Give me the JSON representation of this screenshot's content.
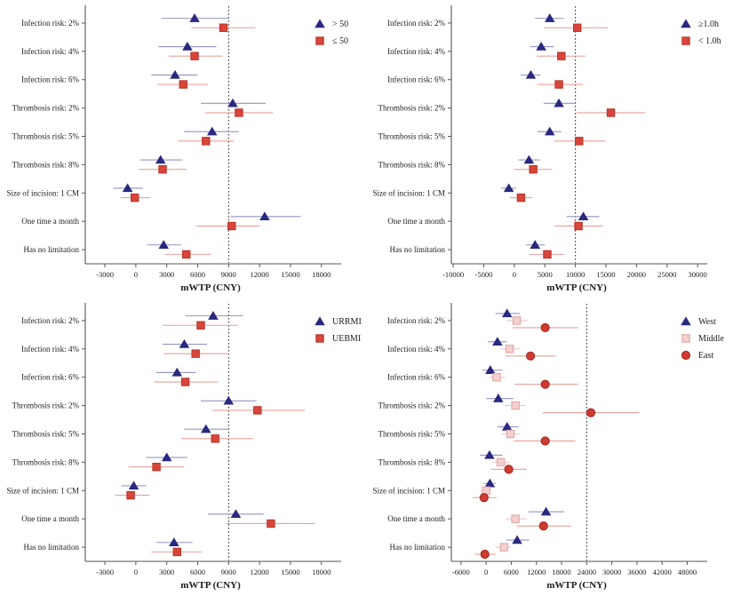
{
  "figure": {
    "xlabel": "mWTP (CNY)",
    "categories": [
      "Infection risk: 2%",
      "Infection risk: 4%",
      "Infection risk: 6%",
      "Thrombosis risk: 2%",
      "Thrombosis risk: 5%",
      "Thrombosis risk: 8%",
      "Size of incision: 1 CM",
      "One time a month",
      "Has no limitation"
    ]
  },
  "chart_data": [
    {
      "type": "scatter",
      "subtype": "forest-plot",
      "position": "top-left",
      "xlabel": "mWTP (CNY)",
      "xticks": [
        -3000,
        0,
        3000,
        6000,
        9000,
        12000,
        15000,
        18000
      ],
      "xlim": [
        -4900,
        19400
      ],
      "refline": 9000,
      "grid": false,
      "legend_position": "top-right",
      "categories": [
        "Infection risk: 2%",
        "Infection risk: 4%",
        "Infection risk: 6%",
        "Thrombosis risk: 2%",
        "Thrombosis risk: 5%",
        "Thrombosis risk: 8%",
        "Size of incision: 1 CM",
        "One time a month",
        "Has no limitation"
      ],
      "series": [
        {
          "name": "> 50",
          "marker": "triangle",
          "color": "#29297f",
          "edge": "#29297f",
          "ci_color": "#9494c4",
          "values": [
            5700,
            5000,
            3800,
            9400,
            7400,
            2400,
            -800,
            12500,
            2700
          ],
          "ci_low": [
            2500,
            2200,
            1500,
            6300,
            4700,
            400,
            -2200,
            9200,
            1100
          ],
          "ci_high": [
            9000,
            7800,
            6000,
            12600,
            10000,
            4500,
            700,
            16000,
            4400
          ]
        },
        {
          "name": "≤ 50",
          "marker": "square",
          "color": "#d8453a",
          "edge": "#b93227",
          "ci_color": "#e9a09a",
          "values": [
            8500,
            5700,
            4600,
            10000,
            6800,
            2600,
            -100,
            9300,
            4900
          ],
          "ci_low": [
            5400,
            3200,
            2100,
            6700,
            4100,
            300,
            -1500,
            5800,
            2800
          ],
          "ci_high": [
            11600,
            8400,
            7000,
            13300,
            9500,
            4900,
            1400,
            12000,
            7300
          ]
        }
      ]
    },
    {
      "type": "scatter",
      "subtype": "forest-plot",
      "position": "top-right",
      "xlabel": "mWTP (CNY)",
      "xticks": [
        -10000,
        -5000,
        0,
        5000,
        10000,
        15000,
        20000,
        25000,
        30000
      ],
      "xlim": [
        -10300,
        30700
      ],
      "refline": 10000,
      "grid": false,
      "legend_position": "top-right",
      "categories": [
        "Infection risk: 2%",
        "Infection risk: 4%",
        "Infection risk: 6%",
        "Thrombosis risk: 2%",
        "Thrombosis risk: 5%",
        "Thrombosis risk: 8%",
        "Size of incision: 1 CM",
        "One time a month",
        "Has no limitation"
      ],
      "series": [
        {
          "name": "≥1.0h",
          "marker": "triangle",
          "color": "#29297f",
          "edge": "#29297f",
          "ci_color": "#9494c4",
          "values": [
            5800,
            4400,
            2700,
            7300,
            5800,
            2400,
            -900,
            11300,
            3400
          ],
          "ci_low": [
            3400,
            2600,
            1000,
            4800,
            3800,
            700,
            -2200,
            8600,
            1900
          ],
          "ci_high": [
            8100,
            6500,
            4300,
            10000,
            7700,
            4200,
            300,
            13900,
            5000
          ]
        },
        {
          "name": "< 1.0h",
          "marker": "square",
          "color": "#d8453a",
          "edge": "#b93227",
          "ci_color": "#e9a09a",
          "values": [
            10300,
            7700,
            7300,
            15800,
            10600,
            3100,
            1100,
            10500,
            5400
          ],
          "ci_low": [
            4900,
            3700,
            3800,
            10200,
            6500,
            0,
            -700,
            6600,
            2400
          ],
          "ci_high": [
            15300,
            11600,
            11200,
            21400,
            14900,
            6100,
            2900,
            14500,
            8200
          ]
        }
      ]
    },
    {
      "type": "scatter",
      "subtype": "forest-plot",
      "position": "bottom-left",
      "xlabel": "mWTP (CNY)",
      "xticks": [
        -3000,
        0,
        3000,
        6000,
        9000,
        12000,
        15000,
        18000
      ],
      "xlim": [
        -4900,
        19400
      ],
      "refline": 9000,
      "grid": false,
      "legend_position": "top-right",
      "categories": [
        "Infection risk: 2%",
        "Infection risk: 4%",
        "Infection risk: 6%",
        "Thrombosis risk: 2%",
        "Thrombosis risk: 5%",
        "Thrombosis risk: 8%",
        "Size of incision: 1 CM",
        "One time a month",
        "Has no limitation"
      ],
      "series": [
        {
          "name": "URRMI",
          "marker": "triangle",
          "color": "#29297f",
          "edge": "#29297f",
          "ci_color": "#9494c4",
          "values": [
            7500,
            4700,
            4000,
            9000,
            6800,
            3000,
            -200,
            9700,
            3700
          ],
          "ci_low": [
            4800,
            2600,
            2000,
            6300,
            4700,
            1000,
            -1400,
            7000,
            2000
          ],
          "ci_high": [
            10400,
            6900,
            5800,
            11700,
            9000,
            5000,
            1000,
            12400,
            5500
          ]
        },
        {
          "name": "UEBMI",
          "marker": "square",
          "color": "#d8453a",
          "edge": "#b93227",
          "ci_color": "#e9a09a",
          "values": [
            6300,
            5800,
            4800,
            11800,
            7700,
            2000,
            -500,
            13100,
            4000
          ],
          "ci_low": [
            2600,
            2700,
            1800,
            7400,
            4400,
            -700,
            -2000,
            8800,
            1500
          ],
          "ci_high": [
            9900,
            8900,
            8000,
            16400,
            11400,
            4700,
            1300,
            17400,
            6400
          ]
        }
      ]
    },
    {
      "type": "scatter",
      "subtype": "forest-plot",
      "position": "bottom-right",
      "xlabel": "mWTP (CNY)",
      "xticks": [
        -6000,
        0,
        6000,
        12000,
        18000,
        24000,
        30000,
        36000,
        42000,
        48000
      ],
      "xlim": [
        -8300,
        51500
      ],
      "refline": 24000,
      "grid": false,
      "legend_position": "top-right",
      "categories": [
        "Infection risk: 2%",
        "Infection risk: 4%",
        "Infection risk: 6%",
        "Thrombosis risk: 2%",
        "Thrombosis risk: 5%",
        "Thrombosis risk: 8%",
        "Size of incision: 1 CM",
        "One time a month",
        "Has no limitation"
      ],
      "series": [
        {
          "name": "West",
          "marker": "triangle",
          "color": "#29297f",
          "edge": "#29297f",
          "ci_color": "#9494c4",
          "values": [
            5000,
            2700,
            1000,
            2900,
            5000,
            800,
            900,
            14300,
            7400
          ],
          "ci_low": [
            2200,
            400,
            -1000,
            0,
            2700,
            -1500,
            -600,
            10100,
            4800
          ],
          "ci_high": [
            8100,
            5000,
            3900,
            6500,
            7700,
            3900,
            2300,
            18600,
            10300
          ]
        },
        {
          "name": "Middle",
          "marker": "square",
          "color": "#f4cfcf",
          "edge": "#dfa3a3",
          "ci_color": "#eec7c7",
          "values": [
            7300,
            5600,
            2500,
            7000,
            5800,
            3500,
            0,
            7000,
            4300
          ],
          "ci_low": [
            5000,
            3500,
            800,
            4400,
            3700,
            1700,
            -1400,
            4600,
            2300
          ],
          "ci_high": [
            9900,
            8100,
            4500,
            9400,
            8100,
            5600,
            1400,
            9700,
            6000
          ]
        },
        {
          "name": "East",
          "marker": "circle",
          "color": "#ce3b31",
          "edge": "#a1261e",
          "ci_color": "#e9a09a",
          "values": [
            14100,
            10600,
            14100,
            25000,
            14100,
            5400,
            -500,
            13700,
            -300
          ],
          "ci_low": [
            6400,
            4600,
            6800,
            13500,
            6600,
            1200,
            -3200,
            7300,
            -2700
          ],
          "ci_high": [
            22000,
            16600,
            22000,
            36500,
            21300,
            9700,
            2500,
            20300,
            2300
          ]
        }
      ]
    }
  ]
}
